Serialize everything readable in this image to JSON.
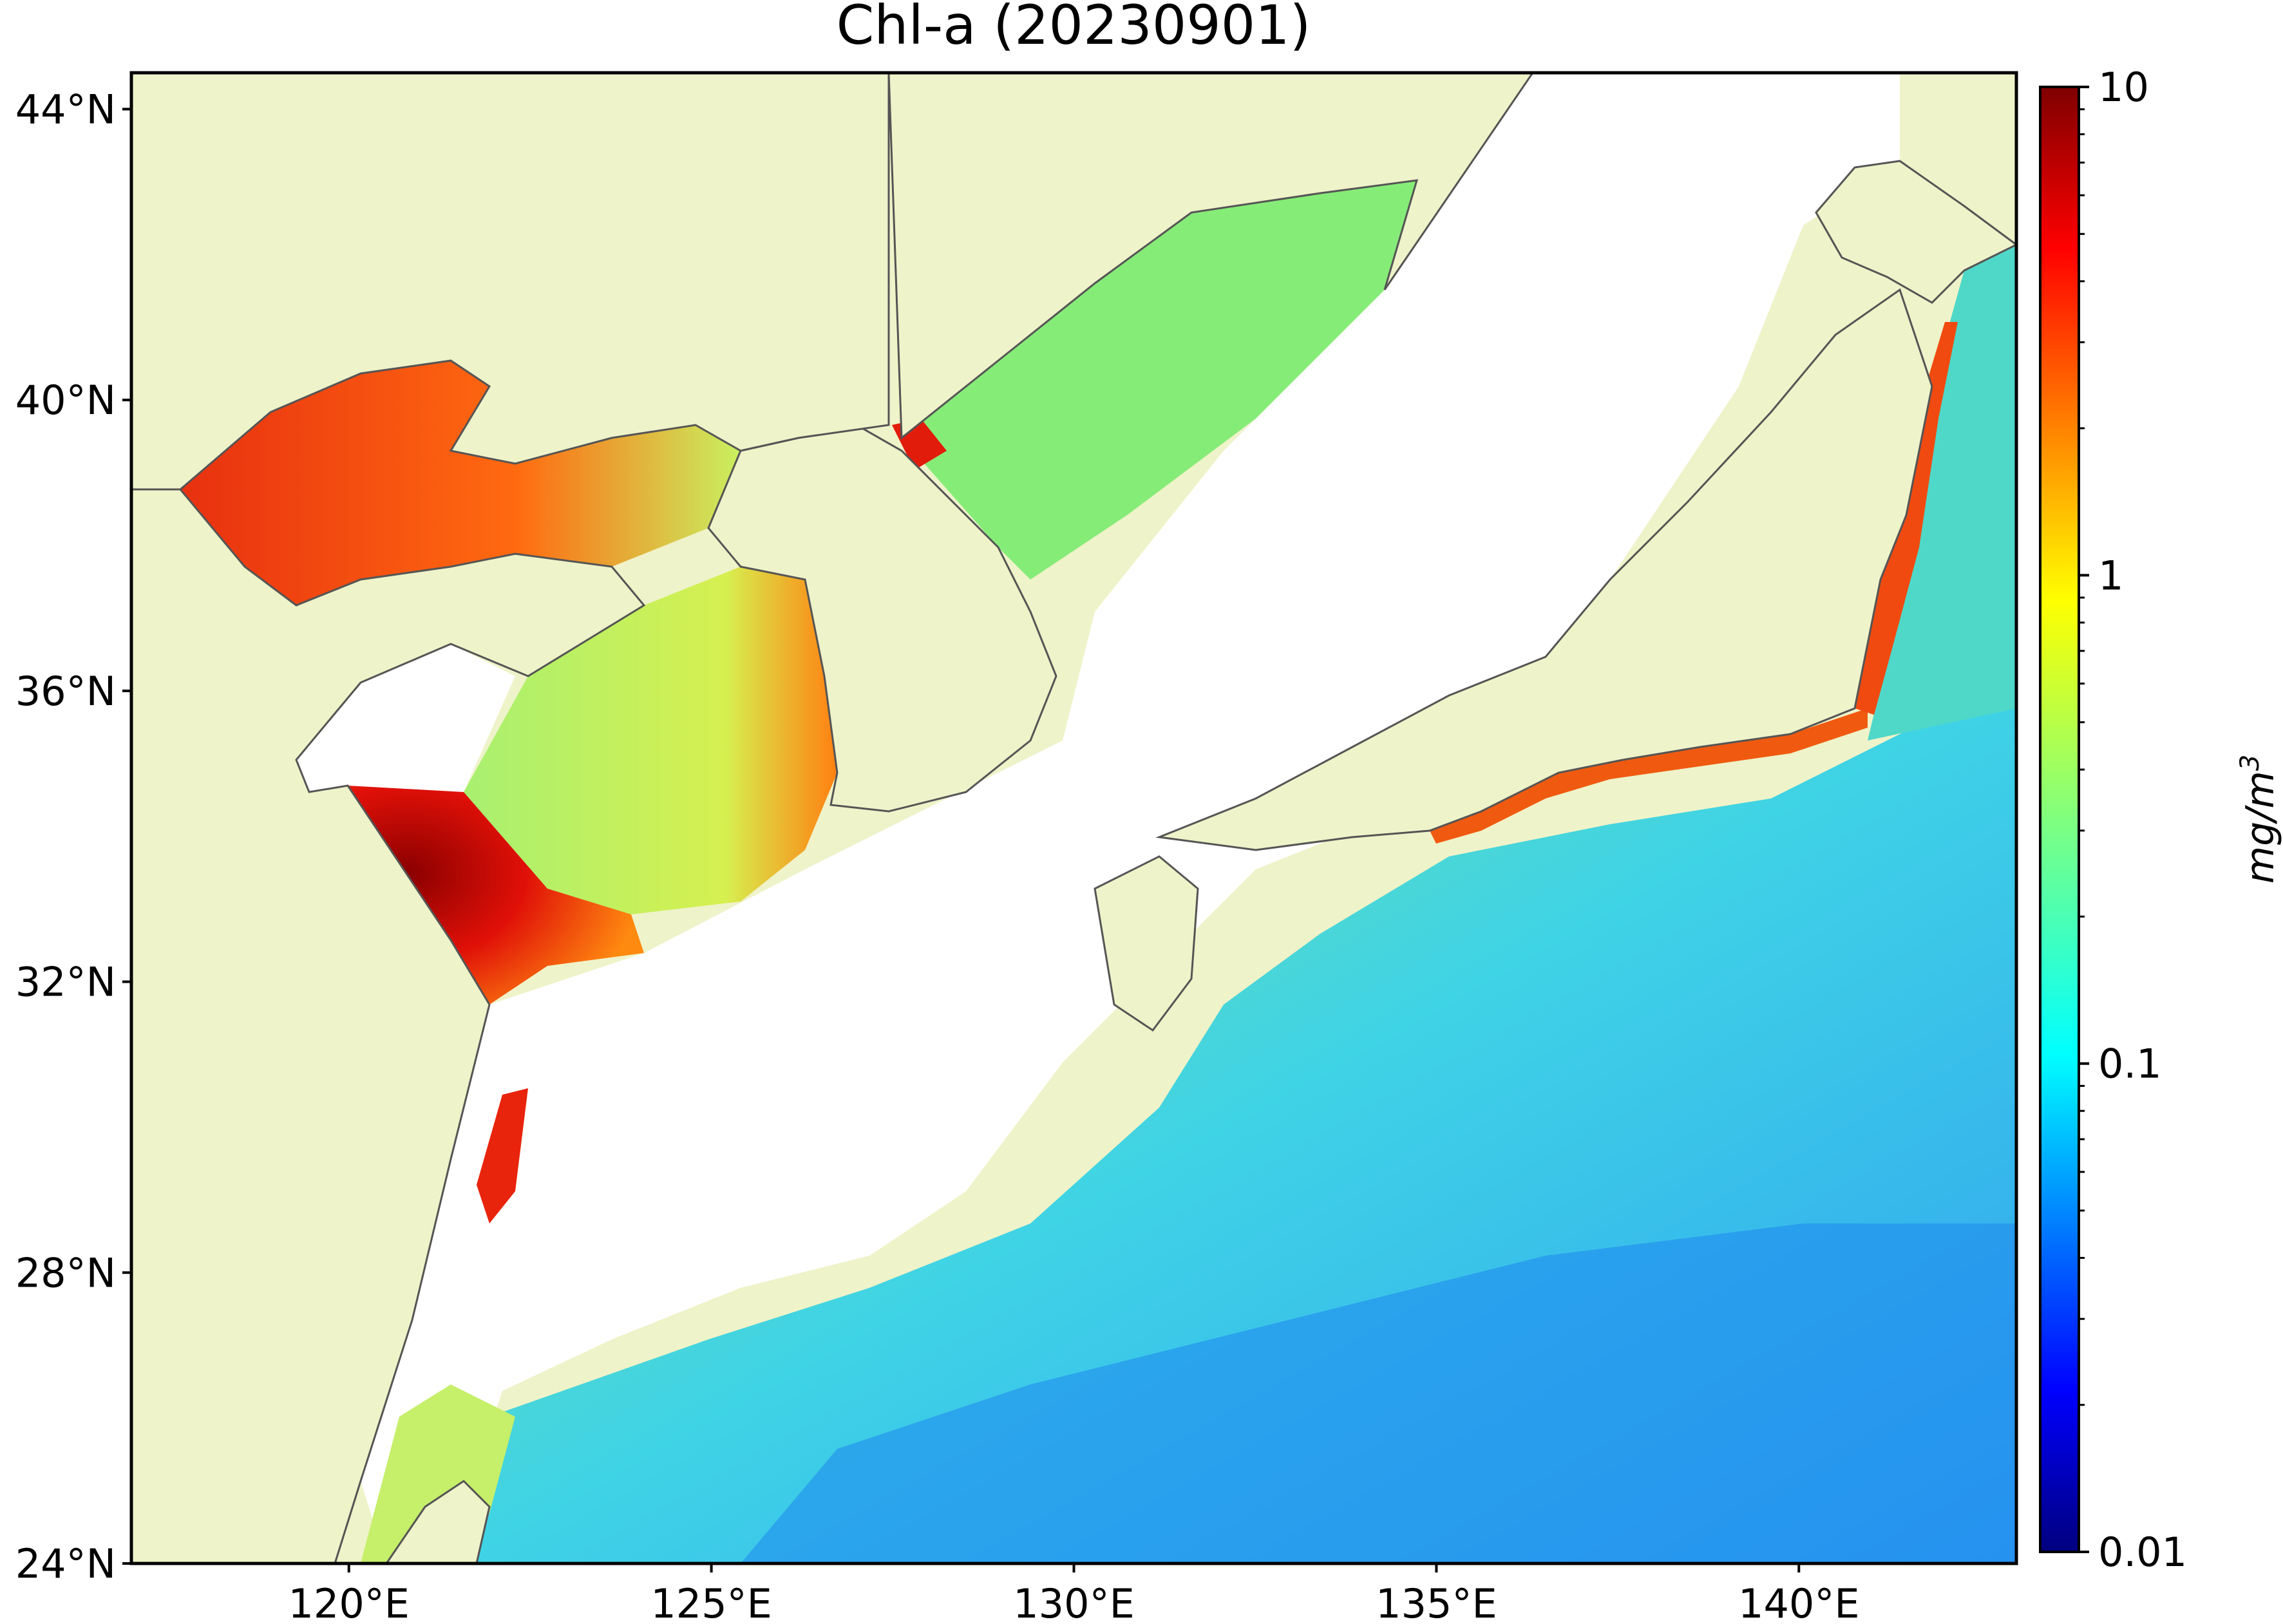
{
  "title": "Chl-a (20230901)",
  "map": {
    "lon_range": [
      117,
      143
    ],
    "lat_range": [
      24,
      44.5
    ],
    "lat_ticks": [
      {
        "value": 44,
        "label": "44°N"
      },
      {
        "value": 40,
        "label": "40°N"
      },
      {
        "value": 36,
        "label": "36°N"
      },
      {
        "value": 32,
        "label": "32°N"
      },
      {
        "value": 28,
        "label": "28°N"
      },
      {
        "value": 24,
        "label": "24°N"
      }
    ],
    "lon_ticks": [
      {
        "value": 120,
        "label": "120°E"
      },
      {
        "value": 125,
        "label": "125°E"
      },
      {
        "value": 130,
        "label": "130°E"
      },
      {
        "value": 135,
        "label": "135°E"
      },
      {
        "value": 140,
        "label": "140°E"
      }
    ],
    "land_color": "#eff3c9",
    "coast_color": "#555555",
    "no_data_color": "#ffffff"
  },
  "colorbar": {
    "unit": "mg/m",
    "unit_superscript": "3",
    "scale": "log",
    "range": [
      0.01,
      10
    ],
    "ticks": [
      {
        "value": 10,
        "label": "10"
      },
      {
        "value": 1,
        "label": "1"
      },
      {
        "value": 0.1,
        "label": "0.1"
      },
      {
        "value": 0.01,
        "label": "0.01"
      }
    ],
    "colormap": "jet",
    "colors": [
      "#00007f",
      "#0000ff",
      "#007fff",
      "#00ffff",
      "#7fff7f",
      "#ffff00",
      "#ff7f00",
      "#ff0000",
      "#7f0000"
    ]
  }
}
